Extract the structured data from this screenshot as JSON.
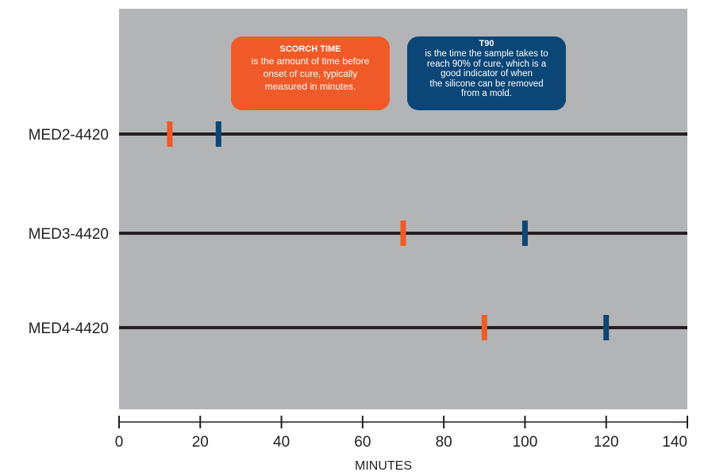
{
  "chart_data": {
    "type": "timeline",
    "xlabel": "MINUTES",
    "xlim": [
      0,
      140
    ],
    "xticks": [
      0,
      20,
      40,
      60,
      80,
      100,
      120,
      140
    ],
    "grid": false,
    "plot_background": "#b3b4b6",
    "categories": [
      "MED2-4420",
      "MED3-4420",
      "MED4-4420"
    ],
    "series": [
      {
        "name": "SCORCH TIME",
        "color": "#f05a28",
        "values": [
          12.5,
          70,
          90
        ]
      },
      {
        "name": "T90",
        "color": "#0b4676",
        "values": [
          24.5,
          100,
          120
        ]
      }
    ],
    "annotations": [
      {
        "id": "scorch",
        "title": "SCORCH TIME",
        "lines": [
          "is the amount of time before",
          "onset of cure, typically",
          "measured in minutes."
        ],
        "color": "#f05a28"
      },
      {
        "id": "t90",
        "title": "T90",
        "lines": [
          "is the time the sample takes to",
          "reach 90% of cure, which is a",
          "good indicator of when",
          "the silicone can be removed",
          "from a mold."
        ],
        "color": "#0b4676"
      }
    ]
  }
}
